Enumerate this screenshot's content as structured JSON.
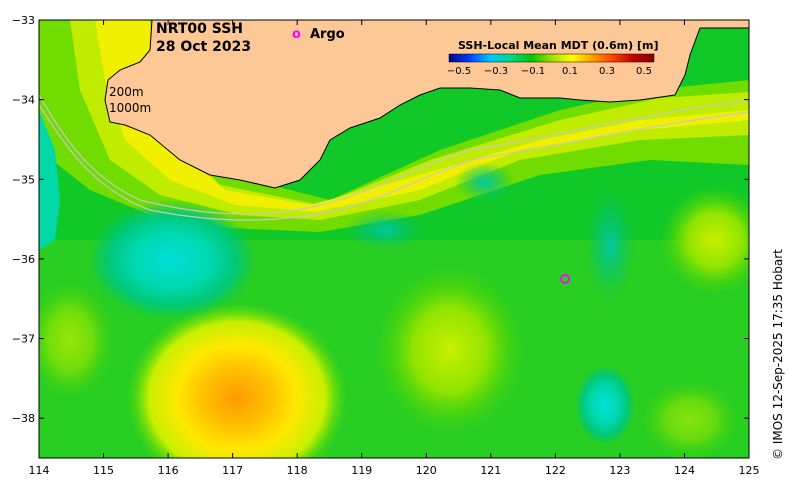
{
  "map": {
    "title_line1": "NRT00 SSH",
    "title_line2": "28 Oct 2023",
    "legend_argo_symbol": "o",
    "legend_argo_label": "Argo",
    "legend_argo_color": "#ff00ff",
    "isobath_labels": [
      "200m",
      "1000m"
    ],
    "credit": "© IMOS 12-Sep-2025 17:35 Hobart",
    "colors": {
      "land": "#fdc896",
      "isobath": "#c8c8c8",
      "coast": "#000000"
    },
    "colorbar": {
      "title": "SSH-Local Mean MDT (0.6m) [m]",
      "ticks": [
        "−0.5",
        "−0.3",
        "−0.1",
        "0.1",
        "0.3",
        "0.5"
      ],
      "range": [
        -0.5,
        0.5
      ],
      "colors": [
        "#00008f",
        "#0040ff",
        "#00c8ff",
        "#00d890",
        "#00c800",
        "#a0e000",
        "#ffff00",
        "#ffa000",
        "#ff4000",
        "#c00000",
        "#7f0000"
      ]
    },
    "lon_ticks": [
      "114",
      "115",
      "116",
      "117",
      "118",
      "119",
      "120",
      "121",
      "122",
      "123",
      "124",
      "125"
    ],
    "lat_ticks": [
      "−33",
      "−34",
      "−35",
      "−36",
      "−37",
      "−38"
    ],
    "lon_range": [
      114,
      125
    ],
    "lat_range": [
      -33,
      -38.5
    ],
    "argo_float": {
      "lon": 122.15,
      "lat": -36.25
    }
  }
}
